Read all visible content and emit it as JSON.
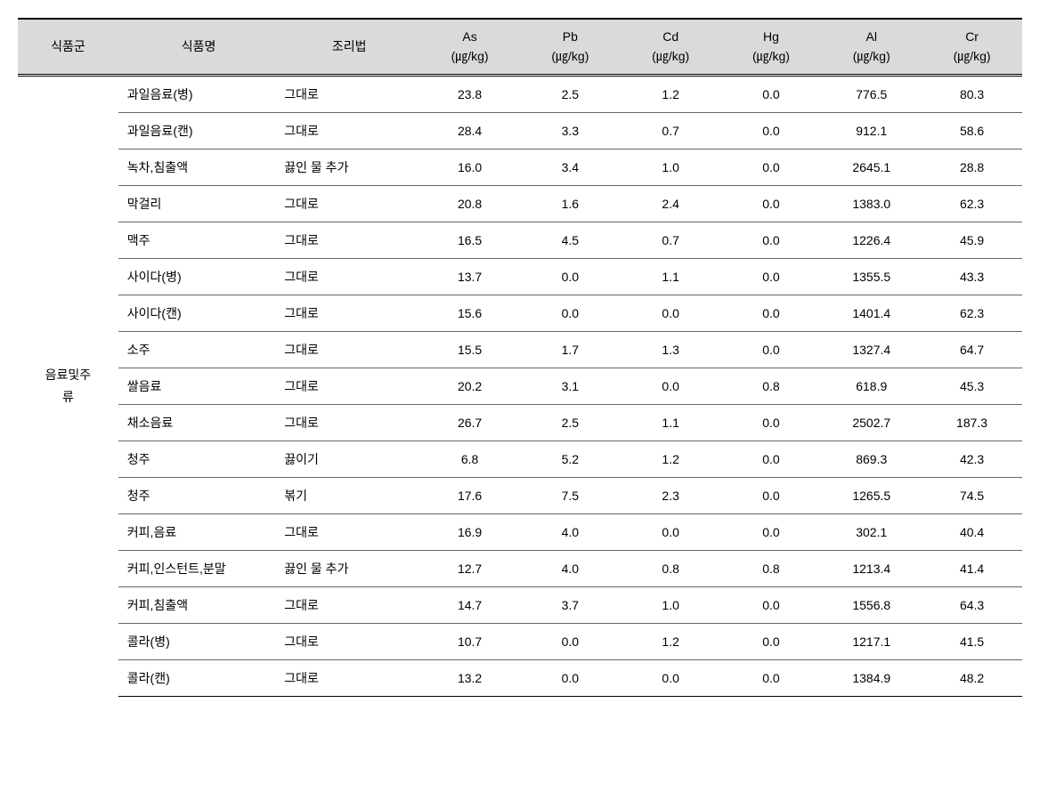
{
  "headers": {
    "category": "식품군",
    "foodName": "식품명",
    "method": "조리법",
    "as": "As",
    "pb": "Pb",
    "cd": "Cd",
    "hg": "Hg",
    "al": "Al",
    "cr": "Cr",
    "unit": "(㎍/kg)"
  },
  "category": "음료및주\n류",
  "rows": [
    {
      "food": "과일음료(병)",
      "method": "그대로",
      "as": "23.8",
      "pb": "2.5",
      "cd": "1.2",
      "hg": "0.0",
      "al": "776.5",
      "cr": "80.3"
    },
    {
      "food": "과일음료(캔)",
      "method": "그대로",
      "as": "28.4",
      "pb": "3.3",
      "cd": "0.7",
      "hg": "0.0",
      "al": "912.1",
      "cr": "58.6"
    },
    {
      "food": "녹차,침출액",
      "method": "끓인 물 추가",
      "as": "16.0",
      "pb": "3.4",
      "cd": "1.0",
      "hg": "0.0",
      "al": "2645.1",
      "cr": "28.8"
    },
    {
      "food": "막걸리",
      "method": "그대로",
      "as": "20.8",
      "pb": "1.6",
      "cd": "2.4",
      "hg": "0.0",
      "al": "1383.0",
      "cr": "62.3"
    },
    {
      "food": "맥주",
      "method": "그대로",
      "as": "16.5",
      "pb": "4.5",
      "cd": "0.7",
      "hg": "0.0",
      "al": "1226.4",
      "cr": "45.9"
    },
    {
      "food": "사이다(병)",
      "method": "그대로",
      "as": "13.7",
      "pb": "0.0",
      "cd": "1.1",
      "hg": "0.0",
      "al": "1355.5",
      "cr": "43.3"
    },
    {
      "food": "사이다(캔)",
      "method": "그대로",
      "as": "15.6",
      "pb": "0.0",
      "cd": "0.0",
      "hg": "0.0",
      "al": "1401.4",
      "cr": "62.3"
    },
    {
      "food": "소주",
      "method": "그대로",
      "as": "15.5",
      "pb": "1.7",
      "cd": "1.3",
      "hg": "0.0",
      "al": "1327.4",
      "cr": "64.7"
    },
    {
      "food": "쌀음료",
      "method": "그대로",
      "as": "20.2",
      "pb": "3.1",
      "cd": "0.0",
      "hg": "0.8",
      "al": "618.9",
      "cr": "45.3"
    },
    {
      "food": "채소음료",
      "method": "그대로",
      "as": "26.7",
      "pb": "2.5",
      "cd": "1.1",
      "hg": "0.0",
      "al": "2502.7",
      "cr": "187.3"
    },
    {
      "food": "청주",
      "method": "끓이기",
      "as": "6.8",
      "pb": "5.2",
      "cd": "1.2",
      "hg": "0.0",
      "al": "869.3",
      "cr": "42.3"
    },
    {
      "food": "청주",
      "method": "볶기",
      "as": "17.6",
      "pb": "7.5",
      "cd": "2.3",
      "hg": "0.0",
      "al": "1265.5",
      "cr": "74.5"
    },
    {
      "food": "커피,음료",
      "method": "그대로",
      "as": "16.9",
      "pb": "4.0",
      "cd": "0.0",
      "hg": "0.0",
      "al": "302.1",
      "cr": "40.4"
    },
    {
      "food": "커피,인스턴트,분말",
      "method": "끓인 물 추가",
      "as": "12.7",
      "pb": "4.0",
      "cd": "0.8",
      "hg": "0.8",
      "al": "1213.4",
      "cr": "41.4"
    },
    {
      "food": "커피,침출액",
      "method": "그대로",
      "as": "14.7",
      "pb": "3.7",
      "cd": "1.0",
      "hg": "0.0",
      "al": "1556.8",
      "cr": "64.3"
    },
    {
      "food": "콜라(병)",
      "method": "그대로",
      "as": "10.7",
      "pb": "0.0",
      "cd": "1.2",
      "hg": "0.0",
      "al": "1217.1",
      "cr": "41.5"
    },
    {
      "food": "콜라(캔)",
      "method": "그대로",
      "as": "13.2",
      "pb": "0.0",
      "cd": "0.0",
      "hg": "0.0",
      "al": "1384.9",
      "cr": "48.2"
    }
  ],
  "styling": {
    "headerBg": "#dadada",
    "borderTopWidth": "2px",
    "doubleBorderStyle": "double",
    "bodyFontSize": 14,
    "rowBorderColor": "#666666"
  }
}
